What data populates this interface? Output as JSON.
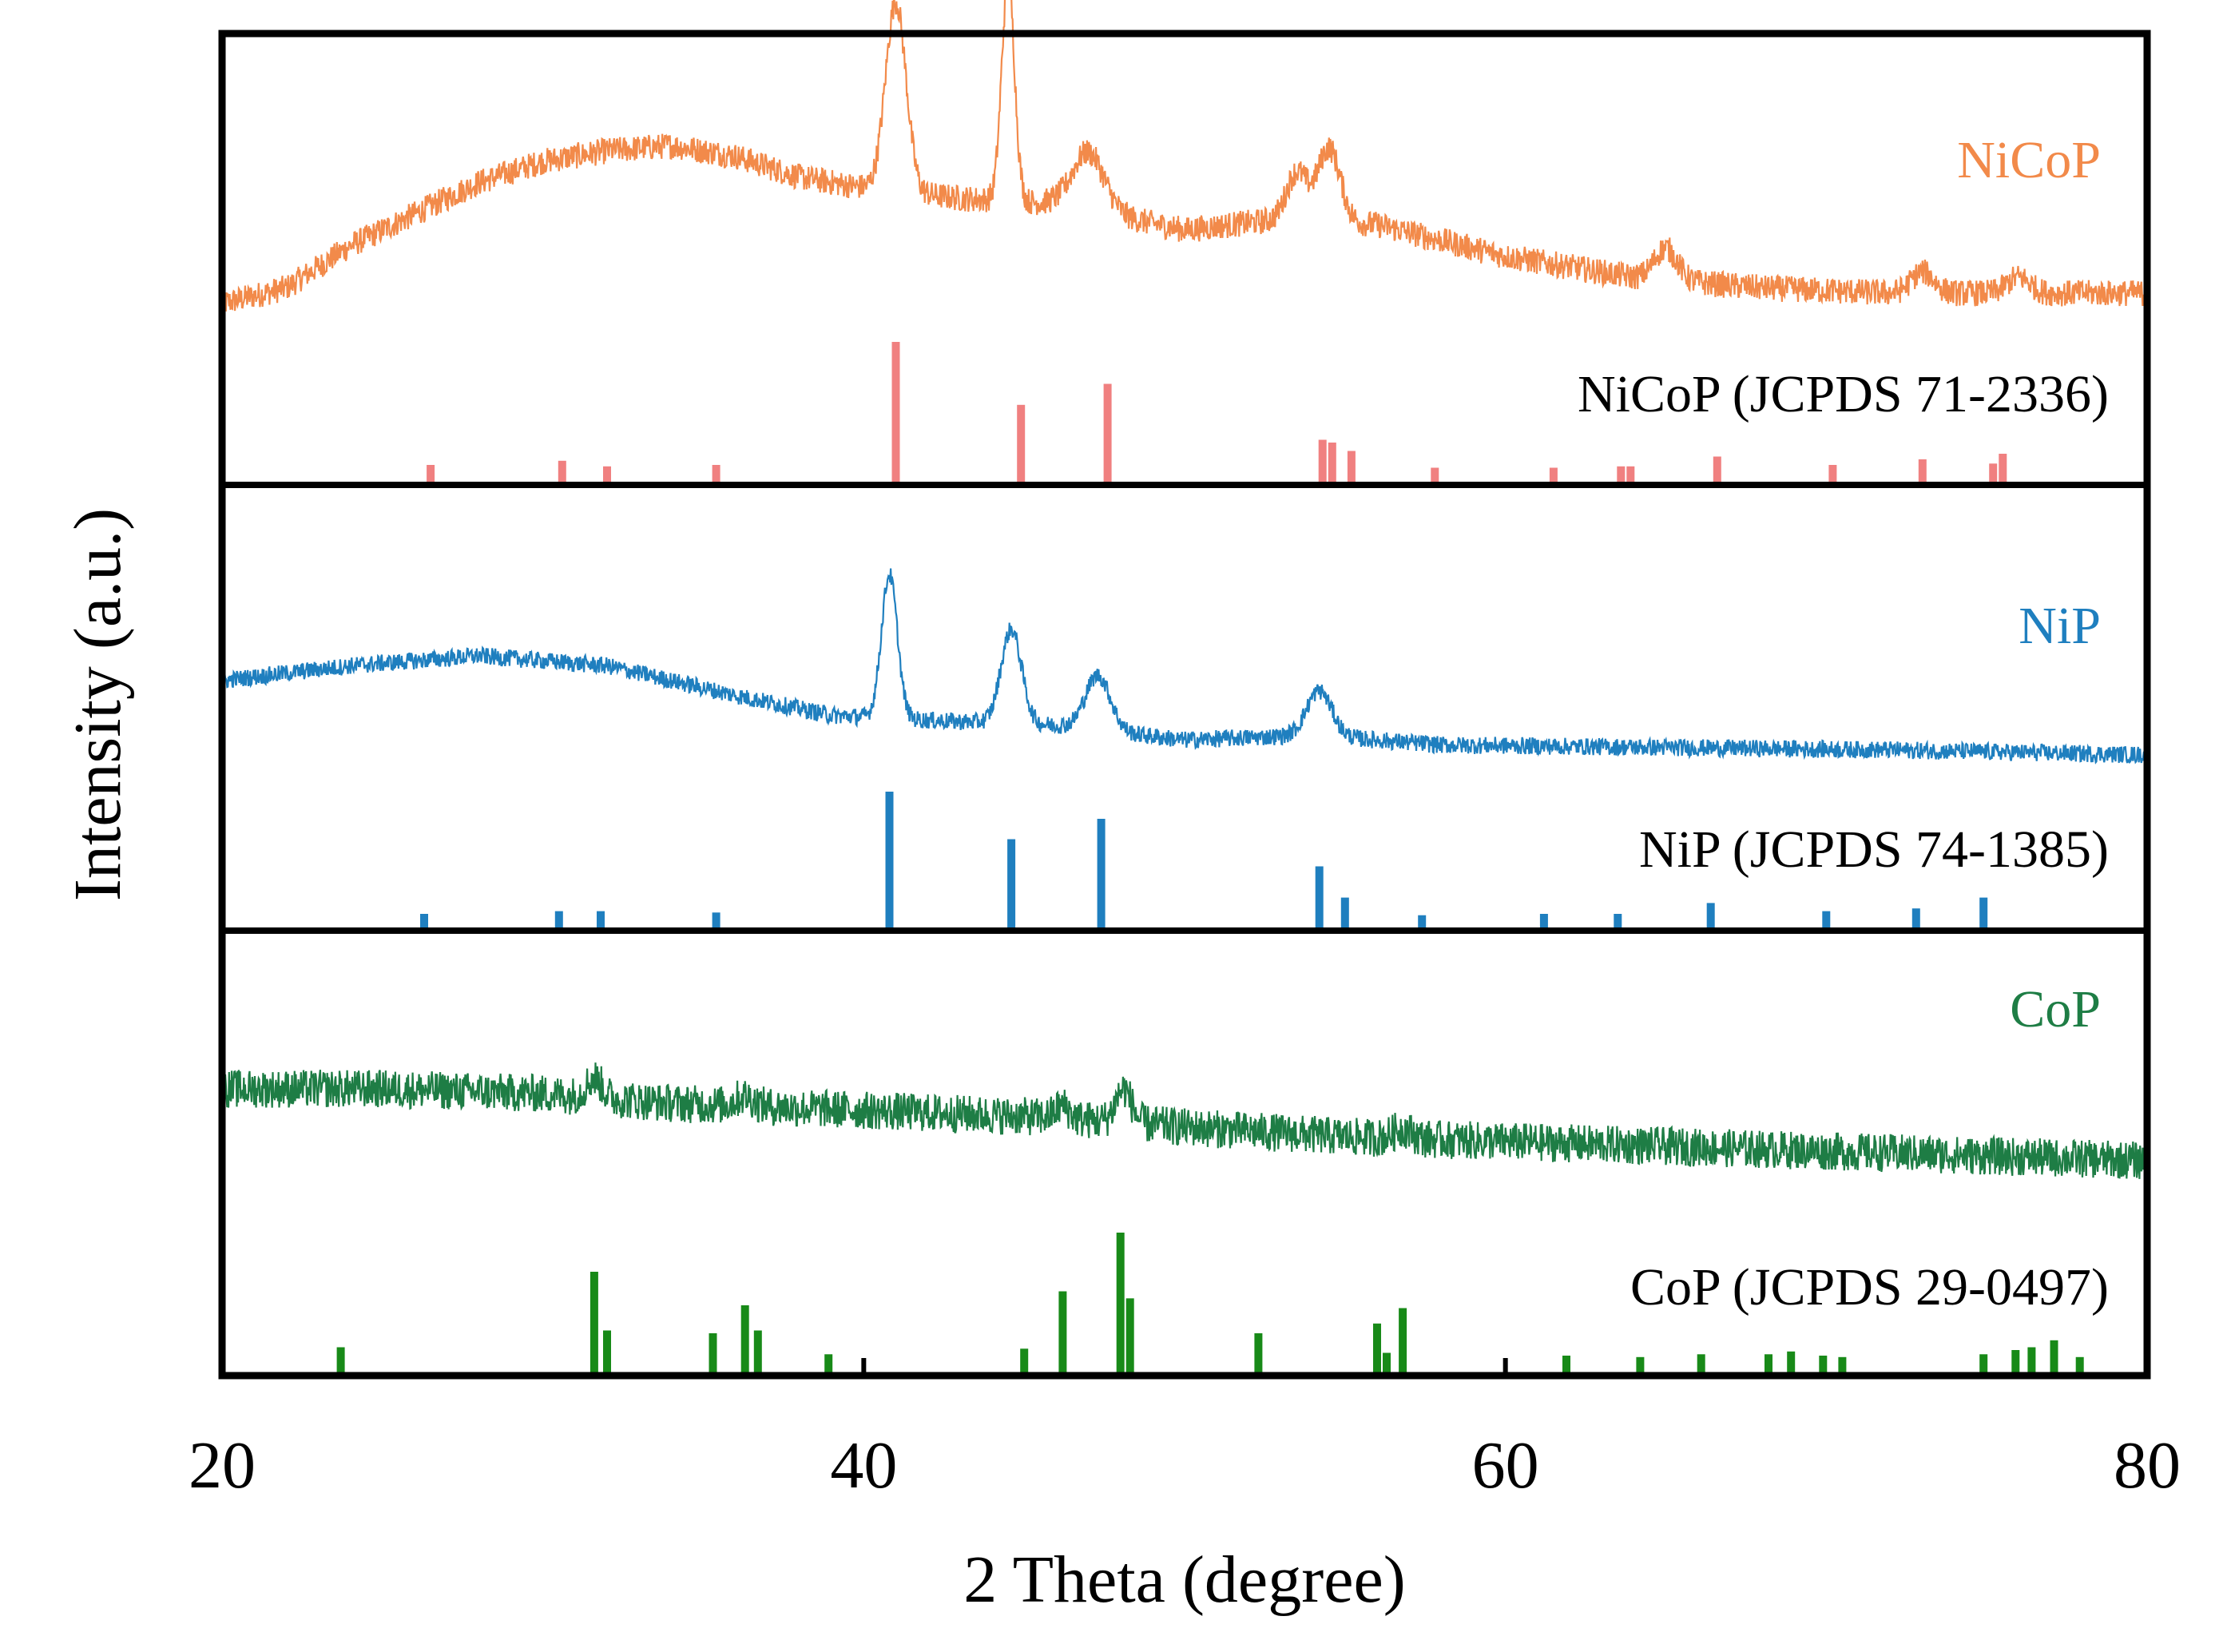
{
  "chart_data": {
    "type": "line",
    "title": "",
    "xlabel": "2 Theta (degree)",
    "ylabel": "Intensity (a.u.)",
    "xlim": [
      20,
      80
    ],
    "x_ticks": [
      20,
      40,
      60,
      80
    ],
    "x_tick_labels": [
      "20",
      "40",
      "60",
      "80"
    ],
    "panels": [
      {
        "name": "NiCoP",
        "sample_label": "NiCoP",
        "reference_label": "NiCoP (JCPDS 71-2336)",
        "color": "#f28a4a",
        "stick_color": "#f08080",
        "pattern": {
          "baseline": [
            [
              20,
              0.06
            ],
            [
              22,
              0.12
            ],
            [
              24,
              0.28
            ],
            [
              26,
              0.4
            ],
            [
              28,
              0.52
            ],
            [
              30,
              0.6
            ],
            [
              32,
              0.64
            ],
            [
              34,
              0.66
            ],
            [
              36,
              0.62
            ],
            [
              38,
              0.54
            ],
            [
              40,
              0.5
            ],
            [
              43,
              0.46
            ],
            [
              46,
              0.44
            ],
            [
              50,
              0.34
            ],
            [
              53,
              0.38
            ],
            [
              56,
              0.36
            ],
            [
              60,
              0.24
            ],
            [
              64,
              0.16
            ],
            [
              68,
              0.12
            ],
            [
              72,
              0.1
            ],
            [
              76,
              0.1
            ],
            [
              80,
              0.1
            ]
          ],
          "peaks": [
            [
              41.0,
              0.72,
              0.45
            ],
            [
              44.5,
              0.85,
              0.28
            ],
            [
              47.0,
              0.22,
              0.7
            ],
            [
              53.5,
              0.18,
              0.45
            ],
            [
              54.5,
              0.28,
              0.5
            ],
            [
              65.0,
              0.12,
              0.5
            ],
            [
              73.0,
              0.08,
              0.5
            ],
            [
              76.0,
              0.06,
              0.5
            ]
          ],
          "noise": 0.05
        },
        "reference_peaks": [
          {
            "x": 26.5,
            "i": 0.12
          },
          {
            "x": 30.6,
            "i": 0.15
          },
          {
            "x": 32.0,
            "i": 0.11
          },
          {
            "x": 35.4,
            "i": 0.12
          },
          {
            "x": 41.0,
            "i": 1.0
          },
          {
            "x": 44.9,
            "i": 0.55
          },
          {
            "x": 47.6,
            "i": 0.7
          },
          {
            "x": 54.3,
            "i": 0.3
          },
          {
            "x": 54.6,
            "i": 0.28
          },
          {
            "x": 55.2,
            "i": 0.22
          },
          {
            "x": 57.8,
            "i": 0.1
          },
          {
            "x": 61.5,
            "i": 0.1
          },
          {
            "x": 63.6,
            "i": 0.11
          },
          {
            "x": 63.9,
            "i": 0.11
          },
          {
            "x": 66.6,
            "i": 0.18
          },
          {
            "x": 70.2,
            "i": 0.12
          },
          {
            "x": 73.0,
            "i": 0.16
          },
          {
            "x": 75.2,
            "i": 0.13
          },
          {
            "x": 75.5,
            "i": 0.2
          }
        ]
      },
      {
        "name": "NiP",
        "sample_label": "NiP",
        "reference_label": "NiP (JCPDS 74-1385)",
        "color": "#1f7fbf",
        "stick_color": "#1f7fbf",
        "pattern": {
          "baseline": [
            [
              20,
              0.3
            ],
            [
              24,
              0.36
            ],
            [
              28,
              0.4
            ],
            [
              32,
              0.36
            ],
            [
              36,
              0.24
            ],
            [
              39,
              0.16
            ],
            [
              42,
              0.14
            ],
            [
              46,
              0.12
            ],
            [
              50,
              0.06
            ],
            [
              54,
              0.08
            ],
            [
              58,
              0.04
            ],
            [
              65,
              0.03
            ],
            [
              72,
              0.02
            ],
            [
              80,
              0.0
            ]
          ],
          "peaks": [
            [
              40.8,
              0.58,
              0.35
            ],
            [
              44.6,
              0.38,
              0.45
            ],
            [
              47.3,
              0.22,
              0.55
            ],
            [
              54.2,
              0.18,
              0.55
            ]
          ],
          "noise": 0.035
        },
        "reference_peaks": [
          {
            "x": 26.3,
            "i": 0.1
          },
          {
            "x": 30.5,
            "i": 0.12
          },
          {
            "x": 31.8,
            "i": 0.12
          },
          {
            "x": 35.4,
            "i": 0.11
          },
          {
            "x": 40.8,
            "i": 1.0
          },
          {
            "x": 44.6,
            "i": 0.65
          },
          {
            "x": 47.4,
            "i": 0.8
          },
          {
            "x": 54.2,
            "i": 0.45
          },
          {
            "x": 55.0,
            "i": 0.22
          },
          {
            "x": 57.4,
            "i": 0.09
          },
          {
            "x": 61.2,
            "i": 0.1
          },
          {
            "x": 63.5,
            "i": 0.1
          },
          {
            "x": 66.4,
            "i": 0.18
          },
          {
            "x": 70.0,
            "i": 0.12
          },
          {
            "x": 72.8,
            "i": 0.14
          },
          {
            "x": 74.9,
            "i": 0.22
          }
        ]
      },
      {
        "name": "CoP",
        "sample_label": "CoP",
        "reference_label": "CoP (JCPDS 29-0497)",
        "color": "#1e7d45",
        "stick_color": "#188a18",
        "pattern": {
          "baseline": [
            [
              20,
              0.34
            ],
            [
              25,
              0.34
            ],
            [
              30,
              0.32
            ],
            [
              34,
              0.28
            ],
            [
              38,
              0.26
            ],
            [
              42,
              0.24
            ],
            [
              46,
              0.22
            ],
            [
              50,
              0.18
            ],
            [
              55,
              0.14
            ],
            [
              60,
              0.12
            ],
            [
              65,
              0.1
            ],
            [
              70,
              0.08
            ],
            [
              75,
              0.06
            ],
            [
              80,
              0.04
            ]
          ],
          "peaks": [
            [
              31.6,
              0.08,
              0.35
            ],
            [
              36.3,
              0.04,
              0.4
            ],
            [
              46.2,
              0.05,
              0.3
            ],
            [
              48.1,
              0.14,
              0.35
            ],
            [
              56.8,
              0.04,
              0.4
            ]
          ],
          "noise": 0.08
        },
        "reference_peaks": [
          {
            "x": 23.7,
            "i": 0.18
          },
          {
            "x": 31.6,
            "i": 0.72
          },
          {
            "x": 32.0,
            "i": 0.3
          },
          {
            "x": 35.3,
            "i": 0.28
          },
          {
            "x": 36.3,
            "i": 0.48
          },
          {
            "x": 36.7,
            "i": 0.3
          },
          {
            "x": 38.9,
            "i": 0.13
          },
          {
            "x": 46.2,
            "i": 0.58
          },
          {
            "x": 45.0,
            "i": 0.17
          },
          {
            "x": 48.0,
            "i": 1.0
          },
          {
            "x": 48.3,
            "i": 0.53
          },
          {
            "x": 52.3,
            "i": 0.28
          },
          {
            "x": 56.0,
            "i": 0.35
          },
          {
            "x": 56.3,
            "i": 0.14
          },
          {
            "x": 56.8,
            "i": 0.46
          },
          {
            "x": 61.9,
            "i": 0.12
          },
          {
            "x": 64.2,
            "i": 0.11
          },
          {
            "x": 66.1,
            "i": 0.13
          },
          {
            "x": 68.2,
            "i": 0.13
          },
          {
            "x": 68.9,
            "i": 0.15
          },
          {
            "x": 69.9,
            "i": 0.12
          },
          {
            "x": 70.5,
            "i": 0.11
          },
          {
            "x": 74.9,
            "i": 0.13
          },
          {
            "x": 75.9,
            "i": 0.16
          },
          {
            "x": 76.4,
            "i": 0.18
          },
          {
            "x": 77.1,
            "i": 0.23
          },
          {
            "x": 77.9,
            "i": 0.11
          }
        ]
      }
    ]
  }
}
